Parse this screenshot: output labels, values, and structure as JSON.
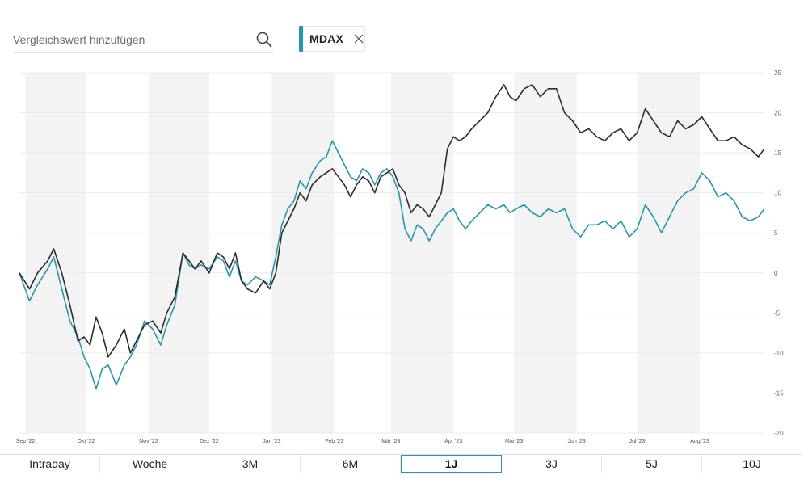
{
  "search": {
    "placeholder": "Vergleichswert hinzufügen"
  },
  "compare_chip": {
    "label": "MDAX",
    "color": "#2596b1"
  },
  "icons": {
    "search": "search-icon",
    "chip_close": "close-icon"
  },
  "time_ranges": {
    "buttons": [
      "Intraday",
      "Woche",
      "3M",
      "6M",
      "1J",
      "3J",
      "5J",
      "10J"
    ],
    "active": "1J"
  },
  "colors": {
    "main_series": "#2b2b2b",
    "compare_series": "#2596b1",
    "alt_band": "#f3f3f3",
    "grid": "#ececec"
  },
  "chart_data": {
    "type": "line",
    "x_axis": {
      "type": "date",
      "range": [
        "2022-09-01",
        "2023-09-01"
      ],
      "tick_labels": [
        "Sep '22",
        "Okt '22",
        "Nov '22",
        "Dez '22",
        "Jan '23",
        "Feb '23",
        "Mär '23",
        "Apr '23",
        "Mai '23",
        "Jun '23",
        "Jul '23",
        "Aug '23"
      ],
      "tick_dates": [
        "2022-09-01",
        "2022-10-01",
        "2022-11-01",
        "2022-12-01",
        "2023-01-01",
        "2023-02-01",
        "2023-03-01",
        "2023-04-01",
        "2023-05-01",
        "2023-06-01",
        "2023-07-01",
        "2023-08-01"
      ]
    },
    "y_axis": {
      "ylim": [
        -20,
        25
      ],
      "ticks": [
        25,
        20,
        15,
        10,
        5,
        0,
        -5,
        -10,
        -15,
        -20
      ],
      "position": "right"
    },
    "alternating_month_bands": true,
    "grid": true,
    "series": [
      {
        "key": "main",
        "color": "#2b2b2b",
        "points": [
          [
            "2022-08-29",
            0
          ],
          [
            "2022-09-03",
            -2
          ],
          [
            "2022-09-07",
            0
          ],
          [
            "2022-09-12",
            1.5
          ],
          [
            "2022-09-15",
            3
          ],
          [
            "2022-09-19",
            0
          ],
          [
            "2022-09-23",
            -4
          ],
          [
            "2022-09-27",
            -8.5
          ],
          [
            "2022-09-30",
            -8
          ],
          [
            "2022-10-03",
            -9
          ],
          [
            "2022-10-06",
            -5.5
          ],
          [
            "2022-10-09",
            -7.5
          ],
          [
            "2022-10-12",
            -10.5
          ],
          [
            "2022-10-16",
            -9
          ],
          [
            "2022-10-20",
            -7
          ],
          [
            "2022-10-23",
            -10
          ],
          [
            "2022-10-26",
            -8.5
          ],
          [
            "2022-10-30",
            -6.5
          ],
          [
            "2022-11-03",
            -6
          ],
          [
            "2022-11-07",
            -7.5
          ],
          [
            "2022-11-10",
            -5
          ],
          [
            "2022-11-14",
            -3
          ],
          [
            "2022-11-18",
            2.5
          ],
          [
            "2022-11-21",
            1.5
          ],
          [
            "2022-11-24",
            0.5
          ],
          [
            "2022-11-27",
            1.5
          ],
          [
            "2022-12-01",
            0
          ],
          [
            "2022-12-05",
            2.5
          ],
          [
            "2022-12-08",
            2
          ],
          [
            "2022-12-11",
            0.5
          ],
          [
            "2022-12-14",
            2.5
          ],
          [
            "2022-12-17",
            -1
          ],
          [
            "2022-12-20",
            -2
          ],
          [
            "2022-12-24",
            -2.5
          ],
          [
            "2022-12-28",
            -1
          ],
          [
            "2022-12-31",
            -2
          ],
          [
            "2023-01-03",
            0
          ],
          [
            "2023-01-06",
            5
          ],
          [
            "2023-01-09",
            6.5
          ],
          [
            "2023-01-12",
            8
          ],
          [
            "2023-01-15",
            10
          ],
          [
            "2023-01-18",
            9
          ],
          [
            "2023-01-21",
            11
          ],
          [
            "2023-01-25",
            12
          ],
          [
            "2023-01-28",
            12.5
          ],
          [
            "2023-01-31",
            13
          ],
          [
            "2023-02-03",
            12
          ],
          [
            "2023-02-06",
            11
          ],
          [
            "2023-02-09",
            9.5
          ],
          [
            "2023-02-12",
            11
          ],
          [
            "2023-02-15",
            12
          ],
          [
            "2023-02-18",
            11.5
          ],
          [
            "2023-02-21",
            10
          ],
          [
            "2023-02-24",
            12
          ],
          [
            "2023-02-27",
            12.5
          ],
          [
            "2023-03-02",
            13
          ],
          [
            "2023-03-05",
            11
          ],
          [
            "2023-03-08",
            10
          ],
          [
            "2023-03-11",
            7.5
          ],
          [
            "2023-03-14",
            8.5
          ],
          [
            "2023-03-17",
            8
          ],
          [
            "2023-03-20",
            7
          ],
          [
            "2023-03-23",
            8.5
          ],
          [
            "2023-03-26",
            10
          ],
          [
            "2023-03-29",
            15.5
          ],
          [
            "2023-04-01",
            17
          ],
          [
            "2023-04-04",
            16.5
          ],
          [
            "2023-04-07",
            17
          ],
          [
            "2023-04-10",
            18
          ],
          [
            "2023-04-14",
            19
          ],
          [
            "2023-04-18",
            20
          ],
          [
            "2023-04-22",
            22
          ],
          [
            "2023-04-26",
            23.5
          ],
          [
            "2023-04-29",
            22
          ],
          [
            "2023-05-02",
            21.5
          ],
          [
            "2023-05-06",
            23
          ],
          [
            "2023-05-10",
            23.5
          ],
          [
            "2023-05-14",
            22
          ],
          [
            "2023-05-18",
            23
          ],
          [
            "2023-05-22",
            23
          ],
          [
            "2023-05-26",
            20
          ],
          [
            "2023-05-30",
            19
          ],
          [
            "2023-06-03",
            17.5
          ],
          [
            "2023-06-07",
            18
          ],
          [
            "2023-06-11",
            17
          ],
          [
            "2023-06-15",
            16.5
          ],
          [
            "2023-06-19",
            17.5
          ],
          [
            "2023-06-23",
            18
          ],
          [
            "2023-06-27",
            16.5
          ],
          [
            "2023-07-01",
            17.5
          ],
          [
            "2023-07-05",
            20.5
          ],
          [
            "2023-07-09",
            19
          ],
          [
            "2023-07-13",
            17.5
          ],
          [
            "2023-07-17",
            17
          ],
          [
            "2023-07-21",
            19
          ],
          [
            "2023-07-25",
            18
          ],
          [
            "2023-07-29",
            18.5
          ],
          [
            "2023-08-02",
            19.5
          ],
          [
            "2023-08-06",
            18
          ],
          [
            "2023-08-10",
            16.5
          ],
          [
            "2023-08-14",
            16.5
          ],
          [
            "2023-08-18",
            17
          ],
          [
            "2023-08-22",
            16
          ],
          [
            "2023-08-26",
            15.5
          ],
          [
            "2023-08-30",
            14.5
          ],
          [
            "2023-09-02",
            15.5
          ]
        ]
      },
      {
        "key": "compare",
        "name": "MDAX",
        "color": "#2596b1",
        "points": [
          [
            "2022-08-29",
            0
          ],
          [
            "2022-09-03",
            -3.5
          ],
          [
            "2022-09-07",
            -1.5
          ],
          [
            "2022-09-12",
            0.5
          ],
          [
            "2022-09-15",
            2
          ],
          [
            "2022-09-19",
            -2
          ],
          [
            "2022-09-23",
            -6
          ],
          [
            "2022-09-27",
            -8
          ],
          [
            "2022-09-30",
            -10.5
          ],
          [
            "2022-10-03",
            -12
          ],
          [
            "2022-10-06",
            -14.5
          ],
          [
            "2022-10-09",
            -12
          ],
          [
            "2022-10-12",
            -11.5
          ],
          [
            "2022-10-16",
            -14
          ],
          [
            "2022-10-20",
            -11.5
          ],
          [
            "2022-10-23",
            -10.5
          ],
          [
            "2022-10-26",
            -9
          ],
          [
            "2022-10-30",
            -6
          ],
          [
            "2022-11-03",
            -7
          ],
          [
            "2022-11-07",
            -9
          ],
          [
            "2022-11-10",
            -6.5
          ],
          [
            "2022-11-14",
            -4
          ],
          [
            "2022-11-18",
            2.5
          ],
          [
            "2022-11-21",
            1
          ],
          [
            "2022-11-24",
            0.5
          ],
          [
            "2022-11-27",
            1
          ],
          [
            "2022-12-01",
            0.5
          ],
          [
            "2022-12-05",
            2
          ],
          [
            "2022-12-08",
            1.5
          ],
          [
            "2022-12-11",
            -0.5
          ],
          [
            "2022-12-14",
            1.5
          ],
          [
            "2022-12-17",
            -1
          ],
          [
            "2022-12-20",
            -1.5
          ],
          [
            "2022-12-24",
            -0.5
          ],
          [
            "2022-12-28",
            -1
          ],
          [
            "2022-12-31",
            -1.5
          ],
          [
            "2023-01-03",
            2
          ],
          [
            "2023-01-06",
            6
          ],
          [
            "2023-01-09",
            8
          ],
          [
            "2023-01-12",
            9
          ],
          [
            "2023-01-15",
            11.5
          ],
          [
            "2023-01-18",
            10.5
          ],
          [
            "2023-01-21",
            12.5
          ],
          [
            "2023-01-25",
            14
          ],
          [
            "2023-01-28",
            14.5
          ],
          [
            "2023-01-31",
            16.5
          ],
          [
            "2023-02-03",
            15
          ],
          [
            "2023-02-06",
            13.5
          ],
          [
            "2023-02-09",
            12
          ],
          [
            "2023-02-12",
            11.5
          ],
          [
            "2023-02-15",
            13
          ],
          [
            "2023-02-18",
            12.5
          ],
          [
            "2023-02-21",
            11
          ],
          [
            "2023-02-24",
            12.5
          ],
          [
            "2023-02-27",
            13
          ],
          [
            "2023-03-02",
            12
          ],
          [
            "2023-03-05",
            10
          ],
          [
            "2023-03-08",
            5.5
          ],
          [
            "2023-03-11",
            4
          ],
          [
            "2023-03-14",
            6
          ],
          [
            "2023-03-17",
            5.5
          ],
          [
            "2023-03-20",
            4
          ],
          [
            "2023-03-23",
            5.5
          ],
          [
            "2023-03-26",
            6.5
          ],
          [
            "2023-03-29",
            7.5
          ],
          [
            "2023-04-01",
            8
          ],
          [
            "2023-04-04",
            6.5
          ],
          [
            "2023-04-07",
            5.5
          ],
          [
            "2023-04-10",
            6.5
          ],
          [
            "2023-04-14",
            7.5
          ],
          [
            "2023-04-18",
            8.5
          ],
          [
            "2023-04-22",
            8
          ],
          [
            "2023-04-26",
            8.5
          ],
          [
            "2023-04-29",
            7.5
          ],
          [
            "2023-05-02",
            8
          ],
          [
            "2023-05-06",
            8.5
          ],
          [
            "2023-05-10",
            7.5
          ],
          [
            "2023-05-14",
            7
          ],
          [
            "2023-05-18",
            8
          ],
          [
            "2023-05-22",
            7.5
          ],
          [
            "2023-05-26",
            8
          ],
          [
            "2023-05-30",
            5.5
          ],
          [
            "2023-06-03",
            4.5
          ],
          [
            "2023-06-07",
            6
          ],
          [
            "2023-06-11",
            6
          ],
          [
            "2023-06-15",
            6.5
          ],
          [
            "2023-06-19",
            5.5
          ],
          [
            "2023-06-23",
            6.5
          ],
          [
            "2023-06-27",
            4.5
          ],
          [
            "2023-07-01",
            5.5
          ],
          [
            "2023-07-05",
            8.5
          ],
          [
            "2023-07-09",
            7
          ],
          [
            "2023-07-13",
            5
          ],
          [
            "2023-07-17",
            7
          ],
          [
            "2023-07-21",
            9
          ],
          [
            "2023-07-25",
            10
          ],
          [
            "2023-07-29",
            10.5
          ],
          [
            "2023-08-02",
            12.5
          ],
          [
            "2023-08-06",
            11.5
          ],
          [
            "2023-08-10",
            9.5
          ],
          [
            "2023-08-14",
            10
          ],
          [
            "2023-08-18",
            9
          ],
          [
            "2023-08-22",
            7
          ],
          [
            "2023-08-26",
            6.5
          ],
          [
            "2023-08-30",
            7
          ],
          [
            "2023-09-02",
            8
          ]
        ]
      }
    ]
  }
}
